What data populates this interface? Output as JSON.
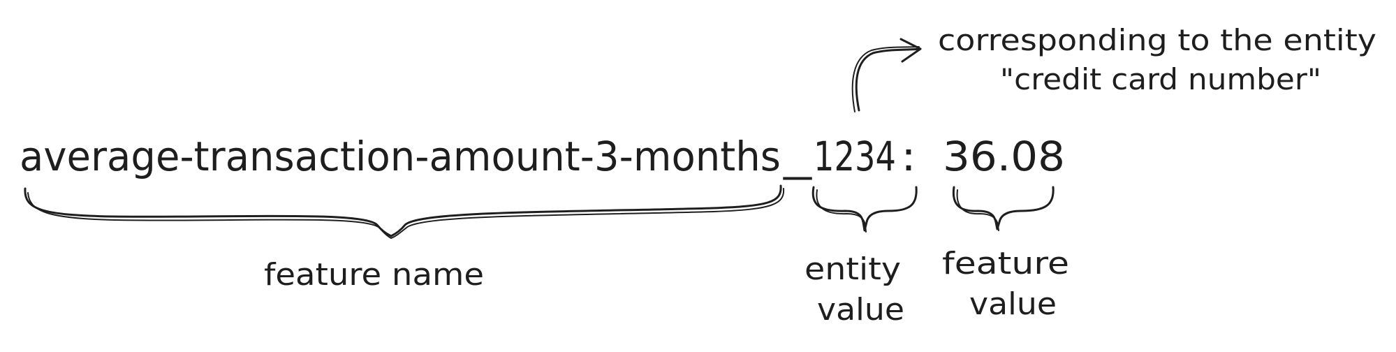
{
  "expression": {
    "feature_name": "average-transaction-amount-3-months",
    "separator": "_",
    "entity_value": "1234",
    "colon": ":",
    "feature_value": "36.08"
  },
  "labels": {
    "feature_name": "feature name",
    "entity_value_line1": "entity",
    "entity_value_line2": "value",
    "feature_value_line1": "feature",
    "feature_value_line2": "value"
  },
  "annotation": {
    "line1": "corresponding to the entity",
    "line2": "\"credit card number\""
  }
}
